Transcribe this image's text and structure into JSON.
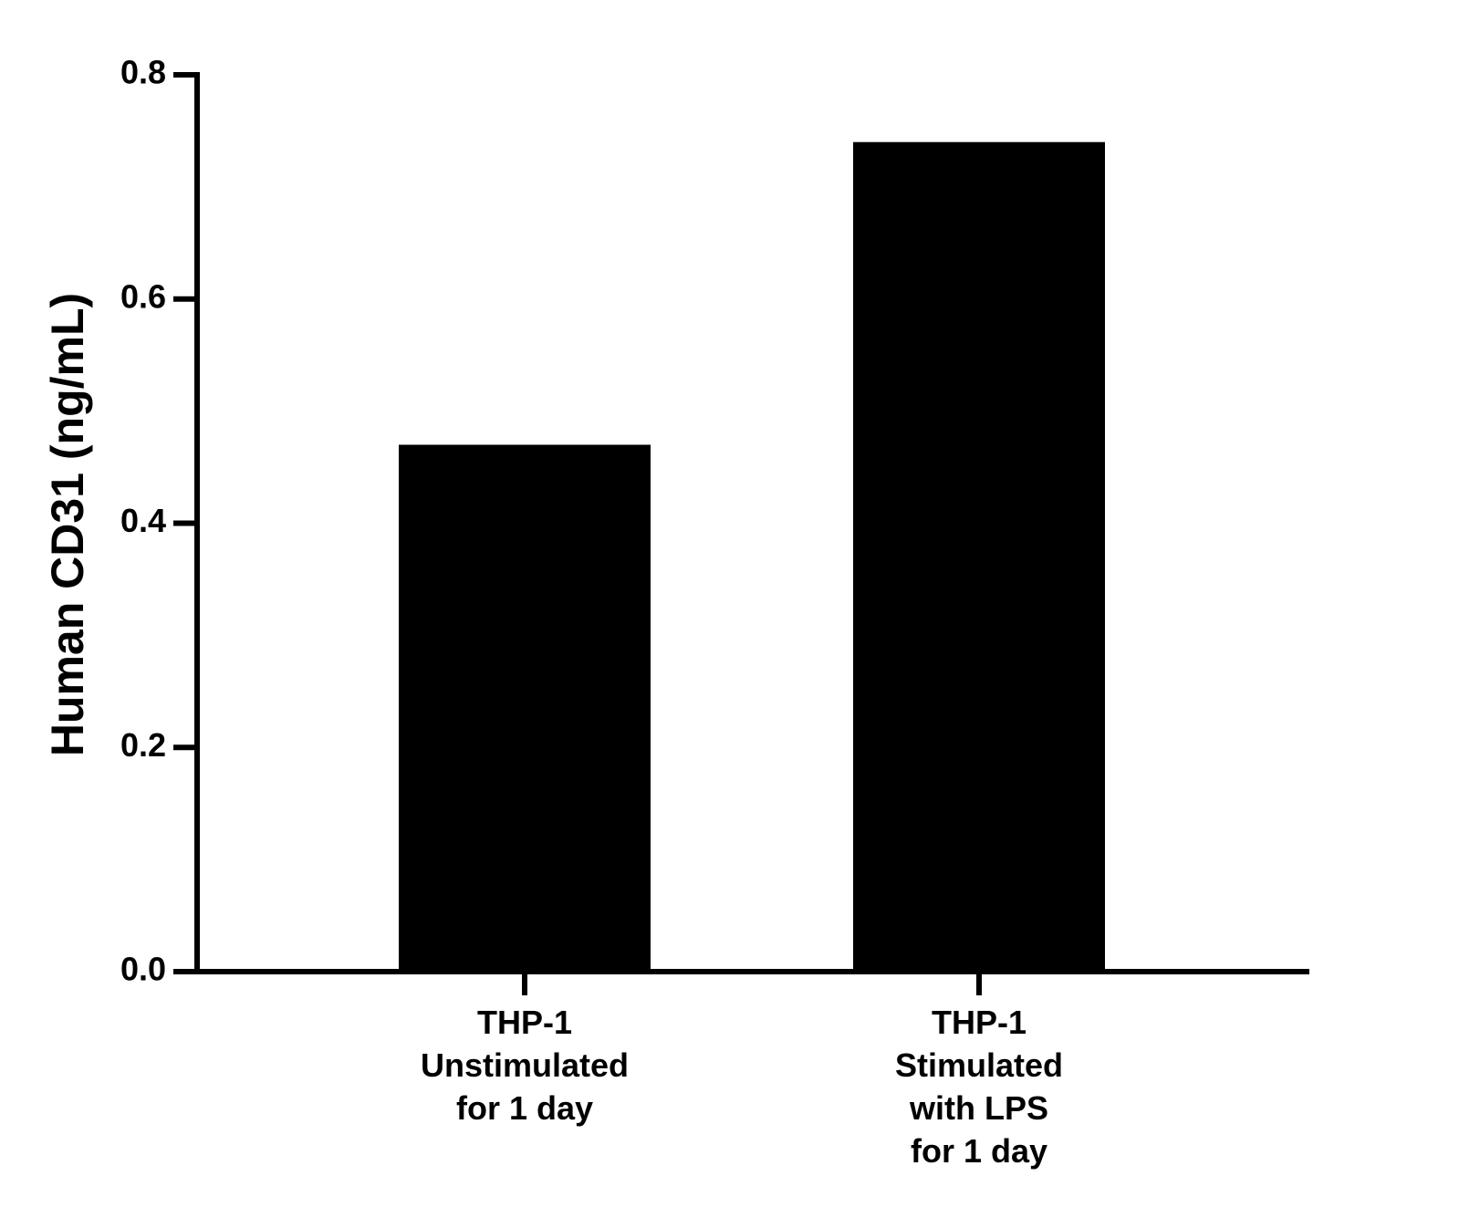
{
  "chart_data": {
    "type": "bar",
    "y_label": "Human CD31 (ng/mL)",
    "categories": [
      [
        "THP-1",
        "Unstimulated",
        "for 1 day"
      ],
      [
        "THP-1",
        "Stimulated",
        "with LPS",
        "for 1 day"
      ]
    ],
    "values": [
      0.47,
      0.74
    ],
    "color": "#000000",
    "ylim": [
      0,
      0.8
    ],
    "yticks": [
      {
        "value": 0,
        "label": "0.0"
      },
      0.2,
      0.4,
      0.6,
      0.8
    ]
  }
}
